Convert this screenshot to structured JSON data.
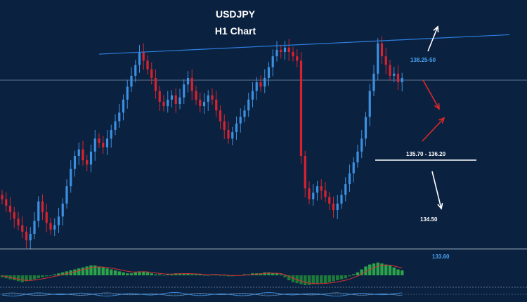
{
  "chart_data": {
    "type": "candlestick",
    "title": "USDJPY",
    "subtitle": "H1 Chart",
    "colors": {
      "background": "#0a2240",
      "bull": "#3d8fe0",
      "bear": "#d8222e",
      "trendline": "#2f7fe0",
      "resistance_label": "#4aa0f0",
      "level_line": "#ffffff",
      "hist_pos": "#2ca34a",
      "hist_neg": "#1e7a38",
      "signal": "#d83030"
    },
    "closes": [
      134.7,
      134.55,
      134.4,
      134.25,
      134.1,
      133.95,
      133.75,
      133.9,
      134.2,
      134.65,
      134.4,
      134.15,
      134.0,
      134.1,
      134.3,
      134.6,
      135.0,
      135.4,
      135.7,
      135.85,
      135.6,
      135.5,
      135.8,
      136.1,
      136.0,
      135.9,
      136.1,
      136.3,
      136.5,
      136.7,
      137.0,
      137.3,
      137.55,
      137.8,
      138.1,
      137.9,
      137.7,
      137.5,
      137.2,
      136.95,
      136.85,
      137.0,
      137.1,
      136.9,
      137.05,
      137.35,
      137.5,
      137.2,
      137.0,
      136.85,
      136.95,
      137.1,
      137.0,
      136.75,
      136.5,
      136.3,
      136.1,
      136.25,
      136.45,
      136.6,
      136.75,
      137.0,
      137.2,
      137.4,
      137.3,
      137.5,
      137.75,
      138.0,
      138.15,
      138.1,
      138.2,
      138.1,
      138.0,
      137.9,
      135.7,
      134.95,
      134.7,
      134.85,
      135.0,
      134.9,
      134.75,
      134.6,
      134.45,
      134.6,
      134.8,
      135.05,
      135.3,
      135.55,
      135.8,
      136.1,
      136.6,
      137.2,
      137.6,
      138.3,
      138.0,
      137.8,
      137.55,
      137.6,
      137.4,
      137.5
    ],
    "levels": [
      {
        "label": "138.25-50",
        "value": 138.35
      },
      {
        "label": "135.70 - 136.20",
        "value": 135.95
      },
      {
        "label": "134.50",
        "value": 134.5
      },
      {
        "label": "133.60",
        "value": 133.6
      }
    ],
    "current_price": 137.45,
    "trendline": {
      "from": [
        24,
        138.05
      ],
      "to": [
        160,
        138.65
      ]
    },
    "histogram": [
      -2,
      -3,
      -4,
      -5,
      -6,
      -7,
      -6,
      -5,
      -4,
      -3,
      -2,
      -1,
      0,
      1,
      2,
      3,
      4,
      5,
      6,
      7,
      8,
      9,
      10,
      10,
      9,
      8,
      7,
      6,
      5,
      4,
      3,
      2,
      2,
      3,
      4,
      4,
      3,
      2,
      1,
      1,
      0,
      1,
      1,
      2,
      2,
      2,
      2,
      1,
      1,
      1,
      0,
      0,
      1,
      1,
      0,
      0,
      -1,
      -1,
      0,
      0,
      1,
      1,
      2,
      2,
      2,
      3,
      3,
      2,
      2,
      1,
      -2,
      -5,
      -7,
      -8,
      -9,
      -10,
      -10,
      -9,
      -9,
      -8,
      -8,
      -7,
      -6,
      -5,
      -4,
      -3,
      -1,
      1,
      3,
      6,
      9,
      11,
      12,
      13,
      12,
      11,
      10,
      8,
      6,
      5
    ],
    "arrows": [
      {
        "color": "#ffffff",
        "direction": "up"
      },
      {
        "color": "#e02828",
        "direction": "down"
      },
      {
        "color": "#e02828",
        "direction": "up"
      },
      {
        "color": "#ffffff",
        "direction": "down"
      }
    ]
  }
}
